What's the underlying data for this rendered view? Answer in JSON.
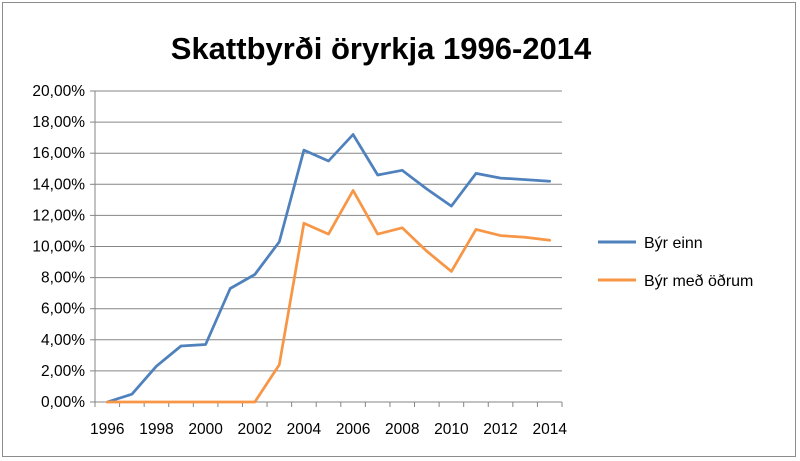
{
  "chart_data": {
    "type": "line",
    "title": "Skattbyrði öryrkja 1996-2014",
    "xlabel": "",
    "ylabel": "",
    "ylim": [
      0,
      20
    ],
    "y_tick_labels": [
      "0,00%",
      "2,00%",
      "4,00%",
      "6,00%",
      "8,00%",
      "10,00%",
      "12,00%",
      "14,00%",
      "16,00%",
      "18,00%",
      "20,00%"
    ],
    "x_tick_labels": [
      "1996",
      "1998",
      "2000",
      "2002",
      "2004",
      "2006",
      "2008",
      "2010",
      "2012",
      "2014"
    ],
    "categories": [
      1996,
      1997,
      1998,
      1999,
      2000,
      2001,
      2002,
      2003,
      2004,
      2005,
      2006,
      2007,
      2008,
      2009,
      2010,
      2011,
      2012,
      2013,
      2014
    ],
    "grid": true,
    "legend_position": "right",
    "series": [
      {
        "name": "Býr einn",
        "color": "#4f81bd",
        "values": [
          0.0,
          0.5,
          2.3,
          3.6,
          3.7,
          7.3,
          8.2,
          10.3,
          16.2,
          15.5,
          17.2,
          14.6,
          14.9,
          13.7,
          12.6,
          14.7,
          14.4,
          14.3,
          14.2
        ]
      },
      {
        "name": "Býr með öðrum",
        "color": "#f79646",
        "values": [
          0.0,
          0.0,
          0.0,
          0.0,
          0.0,
          0.0,
          0.0,
          2.4,
          11.5,
          10.8,
          13.6,
          10.8,
          11.2,
          9.7,
          8.4,
          11.1,
          10.7,
          10.6,
          10.4
        ]
      }
    ]
  }
}
